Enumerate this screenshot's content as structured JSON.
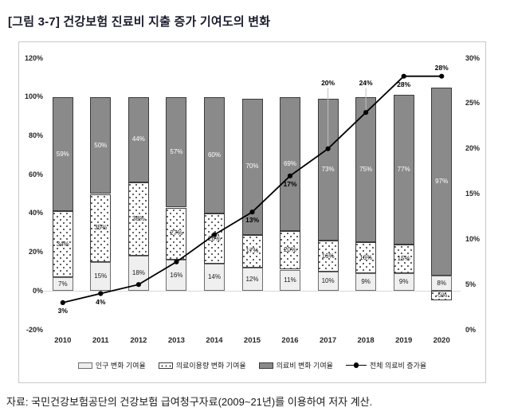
{
  "title": "[그림 3-7] 건강보험 진료비 지출 증가 기여도의 변화",
  "source": "자료: 국민건강보험공단의 건강보험 급여청구자료(2009~21년)를 이용하여 저자 계산.",
  "chart_data": {
    "type": "bar",
    "subtype": "stacked-bars-with-line-overlay",
    "title": "[그림 3-7] 건강보험 진료비 지출 증가 기여도의 변화",
    "categories": [
      "2010",
      "2011",
      "2012",
      "2013",
      "2014",
      "2015",
      "2016",
      "2017",
      "2018",
      "2019",
      "2020"
    ],
    "series": [
      {
        "name": "인구 변화 기여율",
        "role": "bar",
        "style": "light",
        "values": [
          7,
          15,
          18,
          16,
          14,
          12,
          11,
          10,
          9,
          9,
          8
        ],
        "labels": [
          "7%",
          "15%",
          "18%",
          "16%",
          "14%",
          "12%",
          "11%",
          "10%",
          "9%",
          "9%",
          "8%"
        ]
      },
      {
        "name": "의료이용량 변화 기여율",
        "role": "bar",
        "style": "dotted",
        "values": [
          34,
          35,
          38,
          27,
          26,
          17,
          20,
          16,
          16,
          15,
          -5
        ],
        "labels": [
          "34%",
          "35%",
          "38%",
          "27%",
          "26%",
          "17%",
          "20%",
          "16%",
          "16%",
          "15%",
          "-5%"
        ]
      },
      {
        "name": "의료비 변화 기여율",
        "role": "bar",
        "style": "dark",
        "values": [
          59,
          50,
          44,
          57,
          60,
          70,
          69,
          73,
          75,
          77,
          97
        ],
        "labels": [
          "59%",
          "50%",
          "44%",
          "57%",
          "60%",
          "70%",
          "69%",
          "73%",
          "75%",
          "77%",
          "97%"
        ]
      },
      {
        "name": "전체 의료비 증가율",
        "role": "line",
        "values": [
          3,
          4,
          5,
          7.5,
          10.5,
          13,
          17,
          20,
          24,
          28,
          28
        ],
        "labels": [
          "3%",
          "4%",
          "",
          "",
          "",
          "13%",
          "17%",
          "20%",
          "24%",
          "28%",
          "28%"
        ],
        "label_pos": [
          "below",
          "below",
          "",
          "",
          "",
          "below",
          "below",
          "leader",
          "leader",
          "below",
          "above"
        ]
      }
    ],
    "left_axis": {
      "ticks": [
        "120%",
        "100%",
        "80%",
        "60%",
        "40%",
        "20%",
        "0%",
        "-20%"
      ],
      "min": -20,
      "max": 120
    },
    "right_axis": {
      "ticks": [
        "30%",
        "25%",
        "20%",
        "15%",
        "10%",
        "5%",
        "0%"
      ],
      "min": 0,
      "max": 30
    },
    "grid": "zero-line-only",
    "legend_position": "bottom",
    "colors": {
      "bar_dark": "#8a8a8a",
      "bar_light": "#efefef",
      "dots": "#3b3b3b",
      "line": "#000000",
      "zero_line": "#d9d9d9",
      "figure_border": "#c9c9c9"
    }
  }
}
